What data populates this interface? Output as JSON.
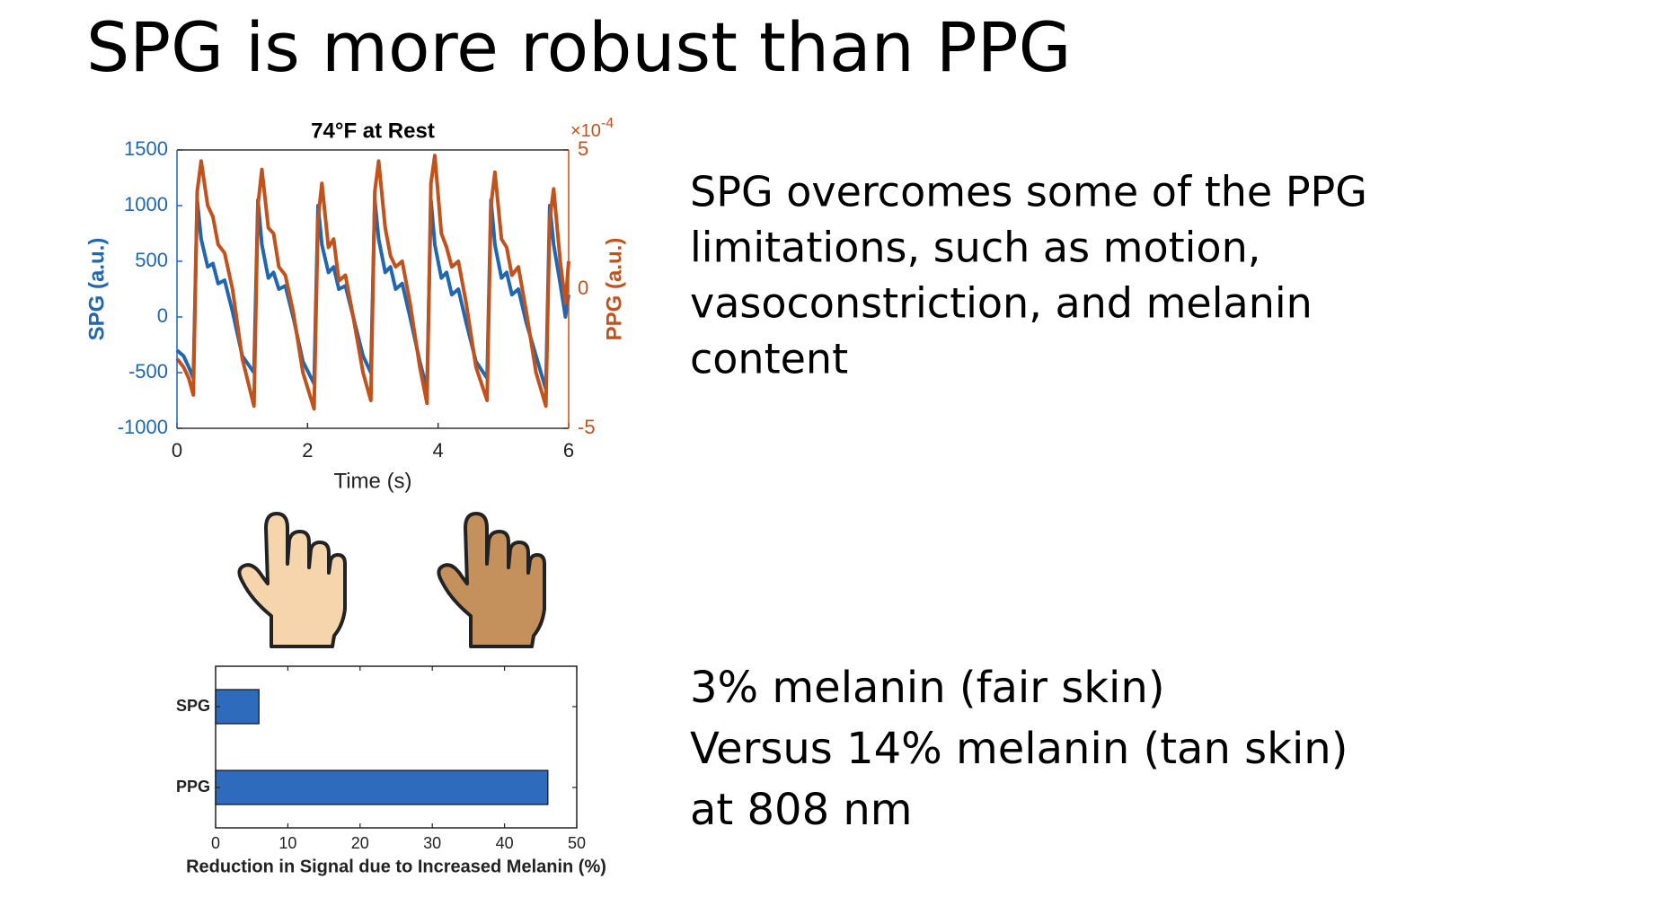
{
  "title": "SPG is more robust than PPG",
  "text_blocks": [
    [
      "SPG overcomes some of the PPG",
      "limitations, such as motion,",
      "vasoconstriction, and melanin",
      "content"
    ],
    [
      "3% melanin (fair skin)",
      "Versus 14% melanin (tan skin)",
      "at 808 nm"
    ]
  ],
  "chart_data": [
    {
      "type": "line",
      "title": "74°F at Rest",
      "xlabel": "Time (s)",
      "ylabel": "SPG (a.u.)",
      "y2label": "PPG (a.u.)",
      "y2_scale_base": "×10",
      "y2_scale_exponent": "-4",
      "x": [
        0,
        0.1,
        0.18,
        0.25,
        0.31,
        0.37,
        0.47,
        0.55,
        0.63,
        0.73,
        0.85,
        1.0,
        1.18,
        1.24,
        1.3,
        1.4,
        1.48,
        1.56,
        1.66,
        1.78,
        1.93,
        2.1,
        2.16,
        2.22,
        2.32,
        2.4,
        2.48,
        2.58,
        2.7,
        2.85,
        2.97,
        3.03,
        3.09,
        3.19,
        3.27,
        3.35,
        3.45,
        3.57,
        3.72,
        3.83,
        3.89,
        3.95,
        4.05,
        4.13,
        4.21,
        4.31,
        4.43,
        4.58,
        4.75,
        4.81,
        4.87,
        4.97,
        5.05,
        5.13,
        5.23,
        5.35,
        5.5,
        5.65,
        5.71,
        5.77,
        5.87,
        5.95,
        6.0
      ],
      "series": [
        {
          "name": "SPG",
          "color": "#2166b0",
          "axis": "y",
          "values": [
            -300,
            -350,
            -450,
            -550,
            1050,
            700,
            450,
            480,
            300,
            330,
            50,
            -350,
            -500,
            1050,
            650,
            350,
            400,
            250,
            280,
            0,
            -400,
            -600,
            1000,
            650,
            400,
            450,
            250,
            280,
            0,
            -350,
            -500,
            1050,
            700,
            400,
            450,
            250,
            300,
            0,
            -400,
            -650,
            1050,
            650,
            350,
            400,
            200,
            250,
            -50,
            -400,
            -550,
            1050,
            650,
            350,
            400,
            200,
            250,
            -50,
            -350,
            -650,
            1000,
            650,
            300,
            0,
            200
          ]
        },
        {
          "name": "PPG",
          "color": "#c2521c",
          "axis": "y2",
          "values": [
            -2.5,
            -2.8,
            -3.2,
            -3.8,
            3.5,
            4.6,
            3.0,
            2.6,
            1.6,
            1.3,
            0,
            -2.5,
            -4.2,
            3.0,
            4.3,
            2.2,
            2.0,
            0.8,
            0.5,
            -0.8,
            -3.0,
            -4.3,
            2.5,
            3.8,
            1.5,
            1.8,
            0.3,
            0.5,
            -1.0,
            -3.0,
            -4.0,
            3.5,
            4.6,
            2.2,
            1.2,
            0.8,
            1.0,
            -0.5,
            -2.8,
            -4.1,
            3.8,
            4.8,
            2.0,
            1.5,
            0.8,
            1.0,
            -0.5,
            -2.8,
            -4.0,
            3.0,
            4.2,
            1.8,
            1.5,
            0.5,
            0.8,
            -0.8,
            -3.0,
            -4.2,
            2.5,
            3.6,
            1.0,
            -0.5,
            1.0
          ]
        }
      ],
      "xlim": [
        0,
        6
      ],
      "xticks": [
        0,
        2,
        4,
        6
      ],
      "ylim": [
        -1000,
        1500
      ],
      "yticks": [
        -1000,
        -500,
        0,
        500,
        1000,
        1500
      ],
      "y2lim": [
        -5,
        5
      ],
      "y2ticks": [
        -5,
        0,
        5
      ]
    },
    {
      "type": "barh",
      "xlabel": "Reduction in Signal due to Increased Melanin (%)",
      "categories": [
        "SPG",
        "PPG"
      ],
      "values": [
        6,
        46
      ],
      "color": "#2e6bbd",
      "xlim": [
        0,
        50
      ],
      "xticks": [
        0,
        10,
        20,
        30,
        40,
        50
      ]
    }
  ]
}
